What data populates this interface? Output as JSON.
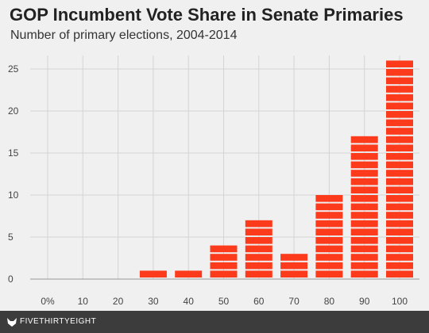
{
  "chart_data": {
    "type": "bar",
    "title": "GOP Incumbent Vote Share in Senate Primaries",
    "subtitle": "Number of primary elections, 2004-2014",
    "xlabel": "",
    "ylabel": "",
    "categories": [
      "0%",
      "10",
      "20",
      "30",
      "40",
      "50",
      "60",
      "70",
      "80",
      "90",
      "100"
    ],
    "values": [
      0,
      0,
      0,
      1,
      1,
      4,
      7,
      3,
      10,
      17,
      26
    ],
    "yticks": [
      0,
      5,
      10,
      15,
      20,
      25
    ],
    "ylim": [
      0,
      27
    ],
    "grid": true,
    "legend": "none",
    "style": "stacked unit blocks",
    "colors": {
      "bar": "#fc3a1c",
      "background": "#f0f0f0",
      "grid": "#d4d4d4",
      "axis_text": "#444444"
    }
  },
  "footer": {
    "brand": "FIVETHIRTYEIGHT",
    "logo_icon": "fivethirtyeight-fox-icon",
    "background": "#3c3c3c"
  }
}
